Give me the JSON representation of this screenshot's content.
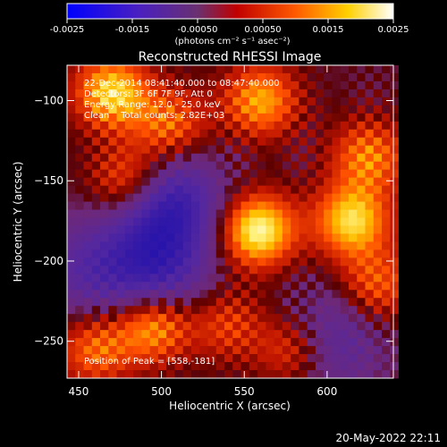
{
  "chart_data": {
    "type": "heatmap",
    "title": "Reconstructed RHESSI Image",
    "xlabel": "Heliocentric X (arcsec)",
    "ylabel": "Heliocentric Y (arcsec)",
    "xlim": [
      443,
      640
    ],
    "ylim": [
      -273,
      -78
    ],
    "x_ticks": [
      450,
      500,
      550,
      600
    ],
    "y_ticks": [
      -100,
      -150,
      -200,
      -250
    ],
    "colorbar": {
      "min": -0.0025,
      "max": 0.0025,
      "tick_values": [
        -0.0025,
        -0.0015,
        -0.0005,
        0.0005,
        0.0015,
        0.0025
      ],
      "tick_labels": [
        "-0.0025",
        "-0.0015",
        "-0.00050",
        "0.00050",
        "0.0015",
        "0.0025"
      ],
      "unit_label": "(photons cm⁻² s⁻¹ asec⁻²)",
      "colormap": "blue-purple-red-yellow-white"
    },
    "annotations": [
      "22-Dec-2014 08:41:40.000 to 08:47:40.000",
      "Detectors: 3F 6F 7F 9F, Att 0",
      "Energy Range: 12.0 - 25.0 keV",
      "Clean    Total counts: 2.82E+03"
    ],
    "peak_label": "Position of Peak = [558,-181]",
    "peak": {
      "x": 558,
      "y": -181
    },
    "sources": [
      {
        "x": 558,
        "y": -181,
        "rel_intensity": 1.0
      },
      {
        "x": 615,
        "y": -175,
        "rel_intensity": 0.85
      },
      {
        "x": 470,
        "y": -95,
        "rel_intensity": 0.85
      },
      {
        "x": 505,
        "y": -115,
        "rel_intensity": 0.55
      },
      {
        "x": 560,
        "y": -100,
        "rel_intensity": 0.7
      },
      {
        "x": 625,
        "y": -135,
        "rel_intensity": 0.6
      },
      {
        "x": 480,
        "y": -150,
        "rel_intensity": 0.6
      },
      {
        "x": 495,
        "y": -240,
        "rel_intensity": 0.75
      },
      {
        "x": 460,
        "y": -255,
        "rel_intensity": 0.55
      },
      {
        "x": 580,
        "y": -255,
        "rel_intensity": 0.55
      },
      {
        "x": 540,
        "y": -240,
        "rel_intensity": 0.4
      },
      {
        "x": 630,
        "y": -215,
        "rel_intensity": 0.5
      }
    ],
    "negative_regions": [
      {
        "x": 505,
        "y": -165,
        "rel_intensity": 0.8
      },
      {
        "x": 495,
        "y": -205,
        "rel_intensity": 0.7
      },
      {
        "x": 600,
        "y": -250,
        "rel_intensity": 0.5
      },
      {
        "x": 455,
        "y": -205,
        "rel_intensity": 0.4
      }
    ]
  },
  "footer": {
    "timestamp": "20-May-2022 22:11"
  }
}
